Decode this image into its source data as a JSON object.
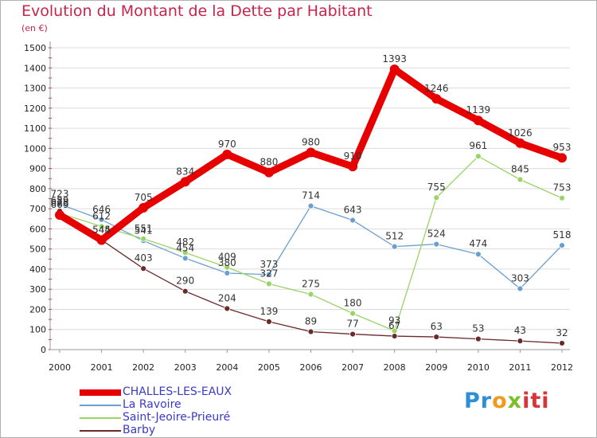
{
  "title": "Evolution du Montant de la Dette par Habitant",
  "subtitle": "(en €)",
  "logo": {
    "text": "Proxiti",
    "colors": [
      "#2a8fd6",
      "#f29a1d",
      "#7bbf2a",
      "#d8343a"
    ]
  },
  "chart_data": {
    "type": "line",
    "title": "Evolution du Montant de la Dette par Habitant",
    "subtitle": "(en €)",
    "xlabel": "",
    "ylabel": "",
    "x": [
      "2000",
      "2001",
      "2002",
      "2003",
      "2004",
      "2005",
      "2006",
      "2007",
      "2008",
      "2009",
      "2010",
      "2011",
      "2012"
    ],
    "ylim": [
      0,
      1500
    ],
    "yticks": [
      0,
      100,
      200,
      300,
      400,
      500,
      600,
      700,
      800,
      900,
      1000,
      1100,
      1200,
      1300,
      1400,
      1500
    ],
    "grid": "horizontal",
    "legend_position": "bottom-left",
    "series": [
      {
        "name": "CHALLES-LES-EAUX",
        "color": "#e60000",
        "values": [
          669,
          544,
          705,
          834,
          970,
          880,
          980,
          910,
          1393,
          1246,
          1139,
          1026,
          953
        ]
      },
      {
        "name": "La Ravoire",
        "color": "#6b9fcf",
        "values": [
          723,
          646,
          541,
          454,
          380,
          373,
          714,
          643,
          512,
          524,
          474,
          303,
          518
        ]
      },
      {
        "name": "Saint-Jeoire-Prieuré",
        "color": "#99d466",
        "values": [
          678,
          612,
          551,
          482,
          409,
          327,
          275,
          180,
          93,
          755,
          961,
          845,
          753
        ]
      },
      {
        "name": "Barby",
        "color": "#6b2a2a",
        "values": [
          689,
          545,
          403,
          290,
          204,
          139,
          89,
          77,
          67,
          63,
          53,
          43,
          32
        ]
      }
    ]
  }
}
